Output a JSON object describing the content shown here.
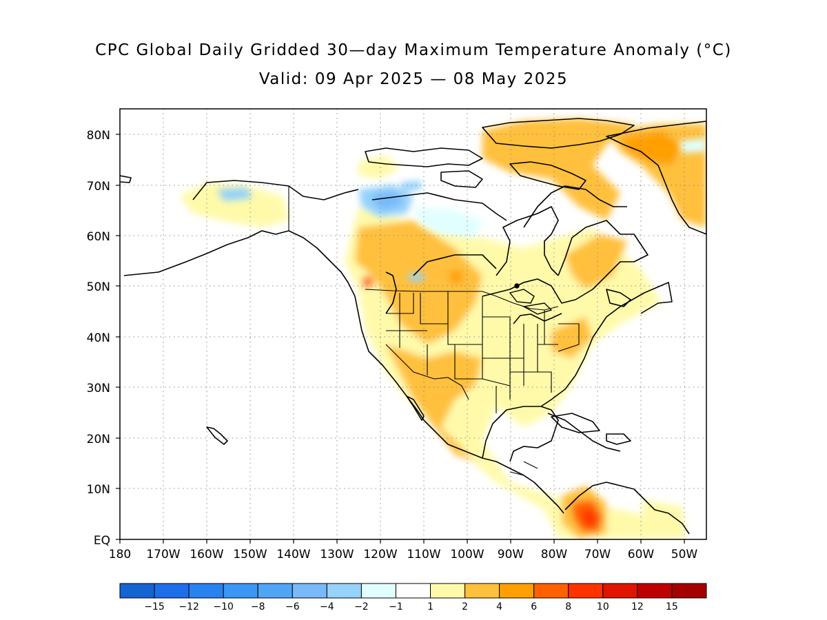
{
  "title": "CPC Global Daily Gridded 30—day Maximum Temperature Anomaly (°C)",
  "subtitle": "Valid: 09 Apr 2025 — 08 May 2025",
  "lat_labels": [
    "EQ",
    "10N",
    "20N",
    "30N",
    "40N",
    "50N",
    "60N",
    "70N",
    "80N"
  ],
  "lon_labels": [
    "180",
    "170W",
    "160W",
    "150W",
    "140W",
    "130W",
    "120W",
    "110W",
    "100W",
    "90W",
    "80W",
    "70W",
    "60W",
    "50W"
  ],
  "colorbar": {
    "colors": [
      "#1464d2",
      "#1e6eeb",
      "#2882f0",
      "#3c96f5",
      "#50a5f5",
      "#78b9fa",
      "#96d2fa",
      "#e1ffff",
      "#ffffff",
      "#fffaaa",
      "#ffc03c",
      "#ffa000",
      "#ff6000",
      "#ff3200",
      "#e11400",
      "#c00000",
      "#a50000"
    ],
    "labels": [
      "−15",
      "−12",
      "−10",
      "−8",
      "−6",
      "−4",
      "−2",
      "−1",
      "1",
      "2",
      "4",
      "6",
      "8",
      "10",
      "12",
      "15"
    ]
  }
}
